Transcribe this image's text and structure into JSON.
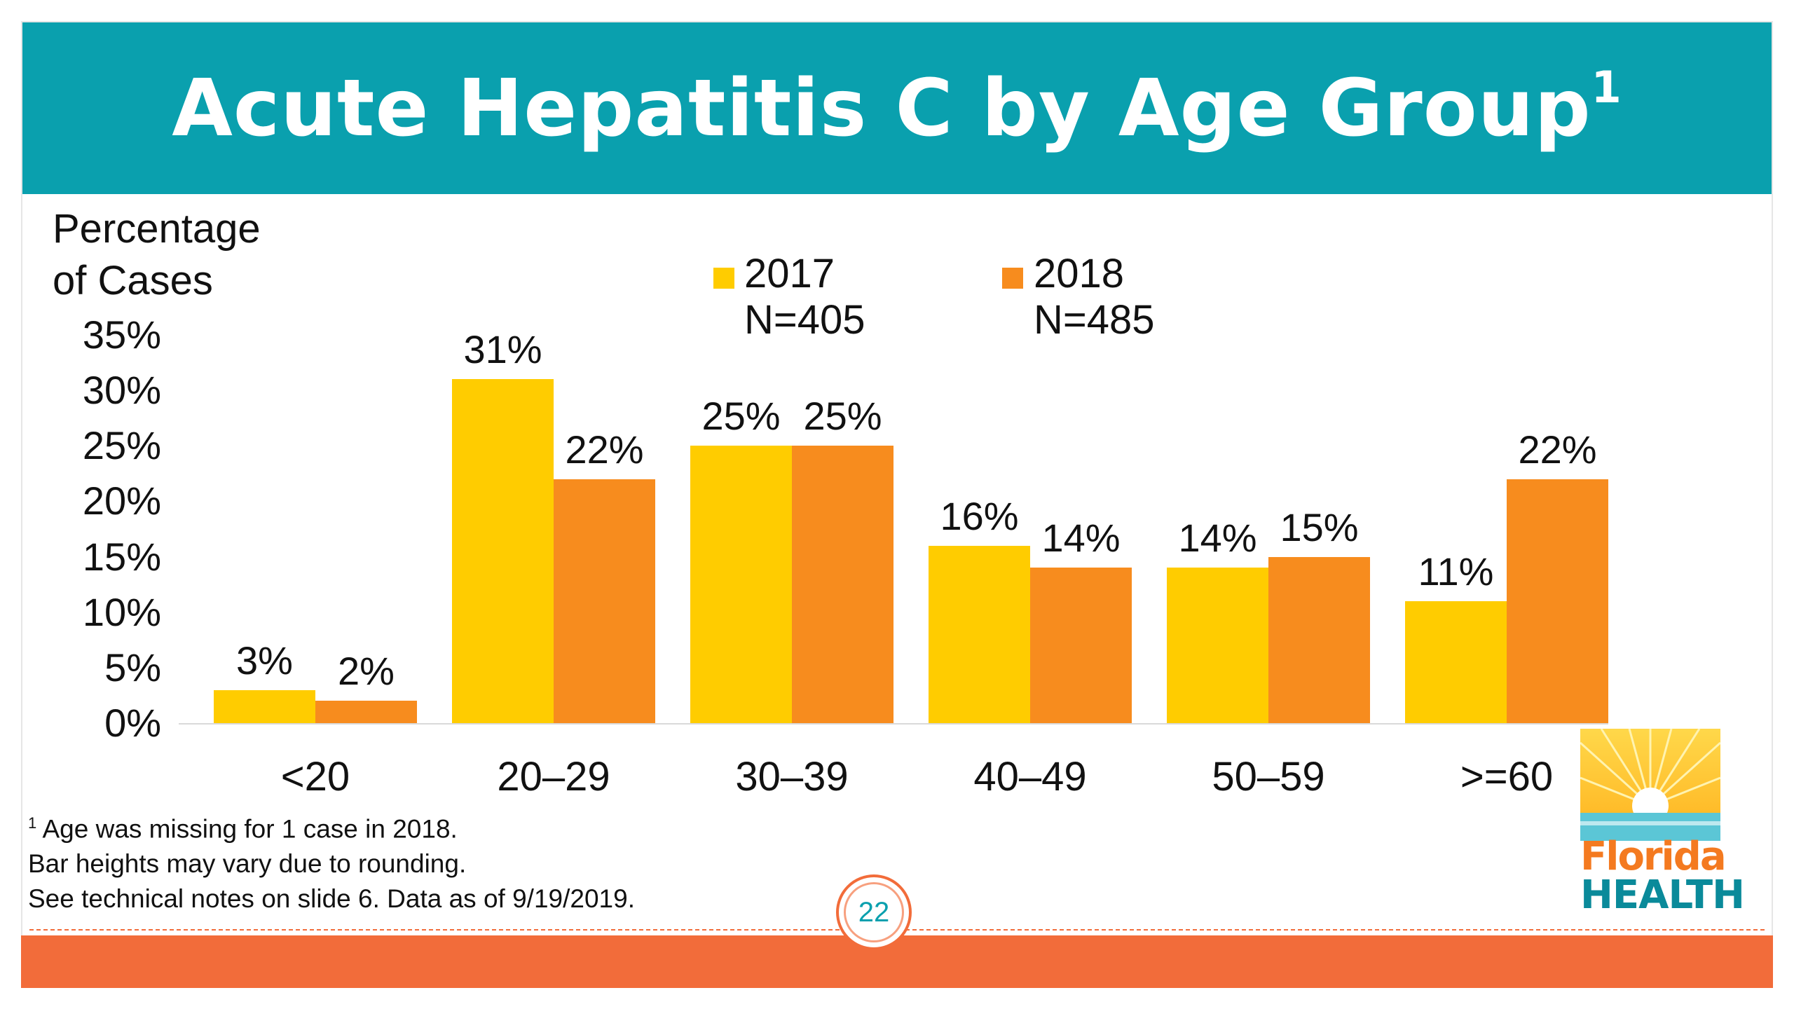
{
  "slide": {
    "title": "Acute Hepatitis C by Age Group",
    "title_superscript": "1",
    "page_number": "22",
    "colors": {
      "title_bar": "#0aa0ae",
      "accent": "#f26c3a",
      "series_2017": "#ffcc00",
      "series_2018": "#f78c1e"
    }
  },
  "chart_data": {
    "type": "bar",
    "ylabel_line1": "Percentage",
    "ylabel_line2": "of Cases",
    "yticks": [
      "35%",
      "30%",
      "25%",
      "20%",
      "15%",
      "10%",
      "5%",
      "0%"
    ],
    "ylim": [
      0,
      35
    ],
    "categories": [
      "<20",
      "20–29",
      "30–39",
      "40–49",
      "50–59",
      ">=60"
    ],
    "series": [
      {
        "name": "2017",
        "n_label": "N=405",
        "values": [
          3,
          31,
          25,
          16,
          14,
          11
        ],
        "labels": [
          "3%",
          "31%",
          "25%",
          "16%",
          "14%",
          "11%"
        ]
      },
      {
        "name": "2018",
        "n_label": "N=485",
        "values": [
          2,
          22,
          25,
          14,
          15,
          22
        ],
        "labels": [
          "2%",
          "22%",
          "25%",
          "14%",
          "15%",
          "22%"
        ]
      }
    ],
    "legend_position": "top-center",
    "grid": false
  },
  "footnotes": {
    "line1_sup": "1",
    "line1": " Age was missing for 1 case in 2018.",
    "line2": "Bar heights may vary due to rounding.",
    "line3": "See technical notes on slide 6. Data as of 9/19/2019."
  },
  "logo": {
    "line1": "Florida",
    "line2": "HEALTH"
  }
}
